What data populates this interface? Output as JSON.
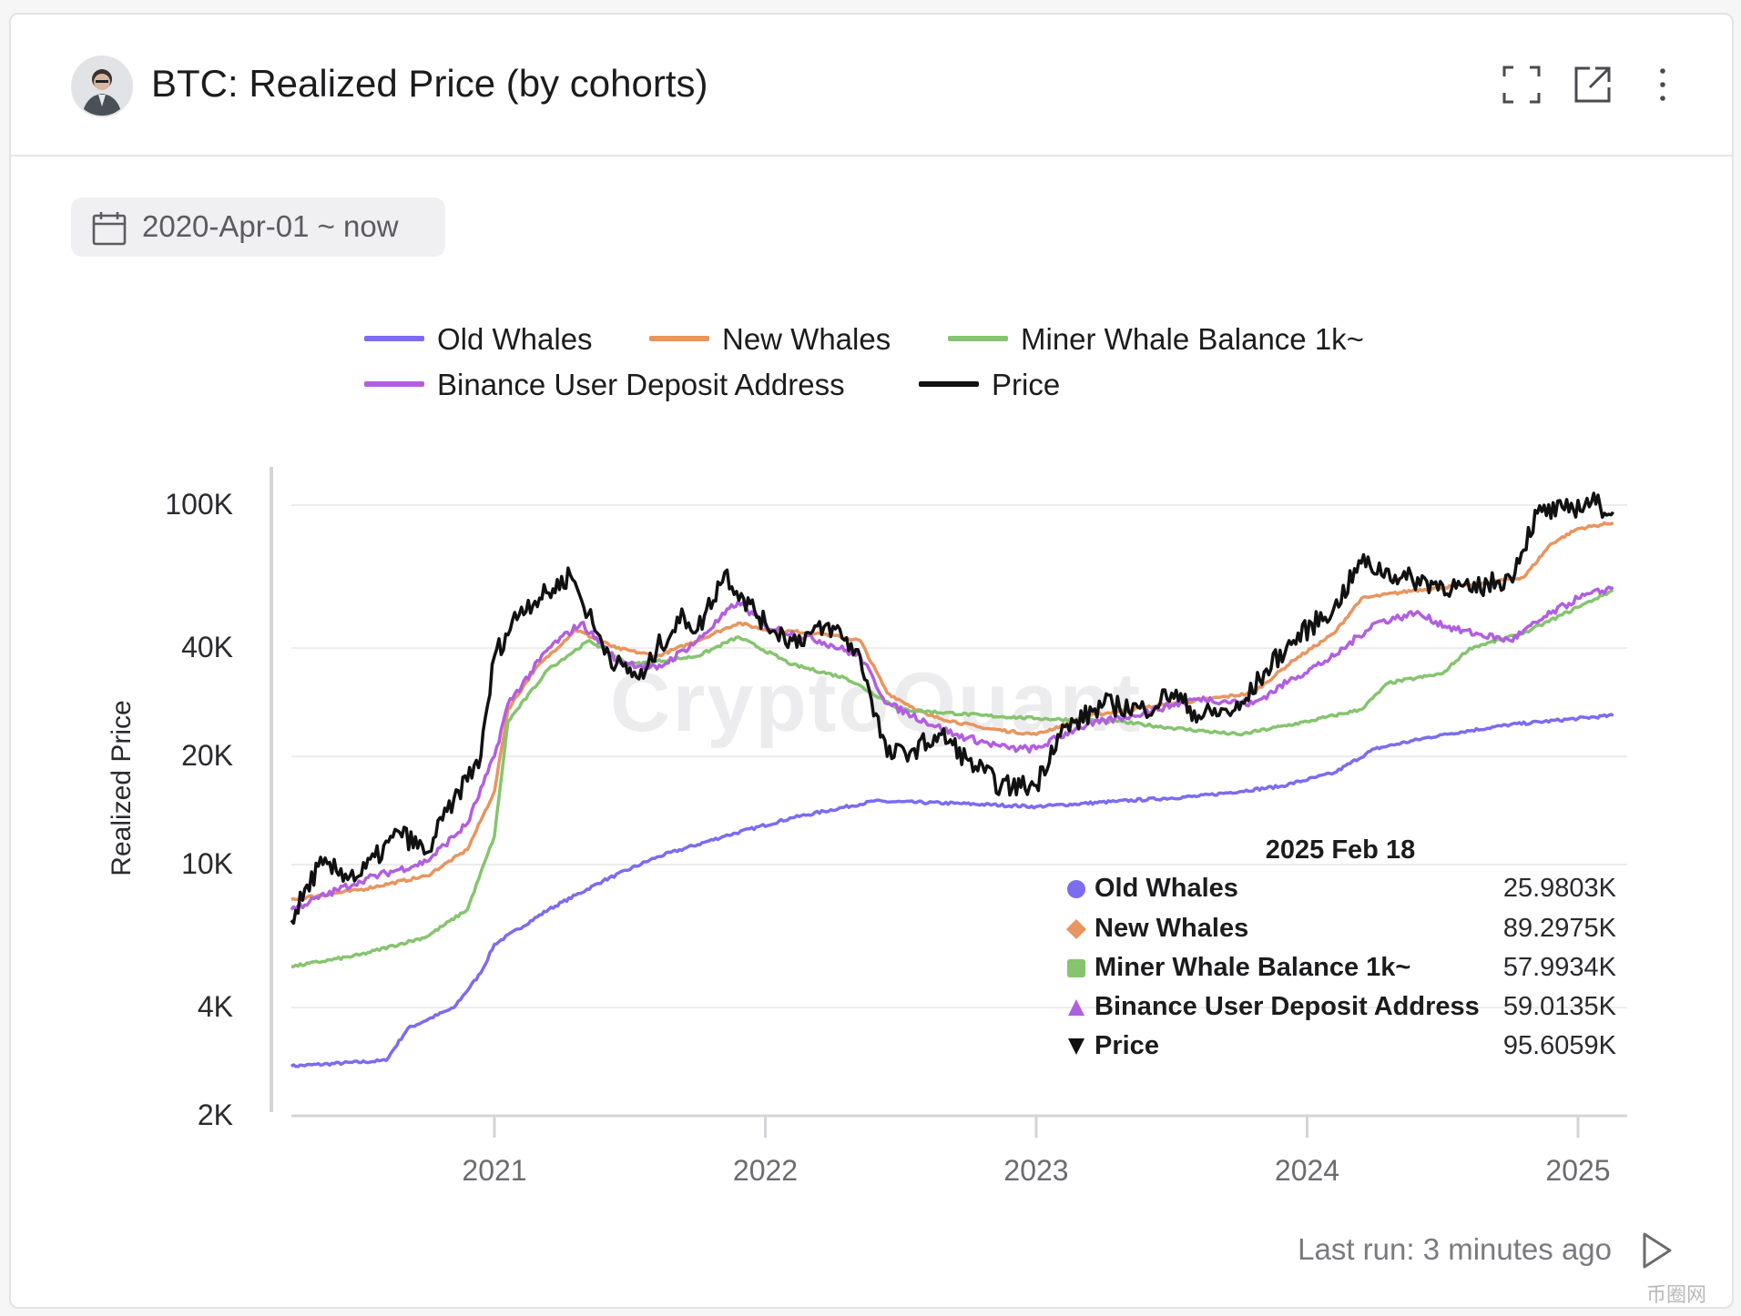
{
  "header": {
    "title": "BTC: Realized Price (by cohorts)"
  },
  "date_range": {
    "label": "2020-Apr-01 ~ now"
  },
  "footer": {
    "last_run": "Last run: 3 minutes ago"
  },
  "watermark": "CryptoQuant",
  "corner_logo": "币圈网",
  "colors": {
    "old_whales": "#7b6cf0",
    "new_whales": "#e8955f",
    "miner": "#86c46f",
    "binance": "#b25ee0",
    "price": "#111111"
  },
  "chart_data": {
    "type": "line",
    "title": "BTC: Realized Price (by cohorts)",
    "xlabel": "",
    "ylabel": "Realized Price",
    "yscale": "log",
    "ylim": [
      2000,
      100000
    ],
    "xlim": [
      2020.25,
      2025.13
    ],
    "yticks": [
      {
        "v": 100000,
        "label": "100K"
      },
      {
        "v": 40000,
        "label": "40K"
      },
      {
        "v": 20000,
        "label": "20K"
      },
      {
        "v": 10000,
        "label": "10K"
      },
      {
        "v": 4000,
        "label": "4K"
      },
      {
        "v": 2000,
        "label": "2K"
      }
    ],
    "xticks": [
      {
        "v": 2021,
        "label": "2021"
      },
      {
        "v": 2022,
        "label": "2022"
      },
      {
        "v": 2023,
        "label": "2023"
      },
      {
        "v": 2024,
        "label": "2024"
      },
      {
        "v": 2025,
        "label": "2025"
      }
    ],
    "legend_position": "top",
    "series": [
      {
        "key": "old_whales",
        "name": "Old Whales",
        "color": "#7b6cf0",
        "points": [
          [
            2020.25,
            2750
          ],
          [
            2020.6,
            2850
          ],
          [
            2020.68,
            3500
          ],
          [
            2020.85,
            4000
          ],
          [
            2020.95,
            5000
          ],
          [
            2021.0,
            6000
          ],
          [
            2021.2,
            7500
          ],
          [
            2021.4,
            9000
          ],
          [
            2021.6,
            10500
          ],
          [
            2021.85,
            12000
          ],
          [
            2022.1,
            13500
          ],
          [
            2022.4,
            15000
          ],
          [
            2022.7,
            14800
          ],
          [
            2023.0,
            14500
          ],
          [
            2023.3,
            15000
          ],
          [
            2023.6,
            15500
          ],
          [
            2023.9,
            16500
          ],
          [
            2024.1,
            18000
          ],
          [
            2024.25,
            21000
          ],
          [
            2024.5,
            23000
          ],
          [
            2024.75,
            24500
          ],
          [
            2025.0,
            25500
          ],
          [
            2025.13,
            25980
          ]
        ]
      },
      {
        "key": "new_whales",
        "name": "New Whales",
        "color": "#e8955f",
        "points": [
          [
            2020.25,
            8000
          ],
          [
            2020.5,
            8500
          ],
          [
            2020.75,
            9300
          ],
          [
            2020.9,
            11000
          ],
          [
            2021.0,
            16000
          ],
          [
            2021.05,
            27000
          ],
          [
            2021.15,
            35000
          ],
          [
            2021.3,
            45000
          ],
          [
            2021.45,
            40000
          ],
          [
            2021.6,
            38000
          ],
          [
            2021.75,
            42000
          ],
          [
            2021.9,
            47000
          ],
          [
            2022.0,
            45000
          ],
          [
            2022.2,
            44000
          ],
          [
            2022.35,
            42000
          ],
          [
            2022.45,
            30000
          ],
          [
            2022.6,
            26000
          ],
          [
            2022.8,
            24000
          ],
          [
            2023.0,
            23000
          ],
          [
            2023.2,
            26000
          ],
          [
            2023.5,
            28000
          ],
          [
            2023.8,
            30000
          ],
          [
            2023.95,
            37000
          ],
          [
            2024.1,
            44000
          ],
          [
            2024.2,
            55000
          ],
          [
            2024.4,
            58000
          ],
          [
            2024.6,
            60000
          ],
          [
            2024.8,
            63000
          ],
          [
            2024.9,
            78000
          ],
          [
            2025.0,
            86000
          ],
          [
            2025.13,
            89298
          ]
        ]
      },
      {
        "key": "miner",
        "name": "Miner Whale Balance 1k~",
        "color": "#86c46f",
        "points": [
          [
            2020.25,
            5200
          ],
          [
            2020.5,
            5600
          ],
          [
            2020.75,
            6300
          ],
          [
            2020.9,
            7500
          ],
          [
            2021.0,
            12000
          ],
          [
            2021.05,
            25000
          ],
          [
            2021.2,
            35000
          ],
          [
            2021.35,
            42000
          ],
          [
            2021.5,
            36000
          ],
          [
            2021.75,
            38000
          ],
          [
            2021.9,
            43000
          ],
          [
            2022.1,
            36000
          ],
          [
            2022.3,
            33000
          ],
          [
            2022.5,
            27000
          ],
          [
            2022.8,
            26000
          ],
          [
            2023.0,
            25500
          ],
          [
            2023.3,
            25000
          ],
          [
            2023.5,
            24000
          ],
          [
            2023.75,
            23000
          ],
          [
            2024.0,
            25000
          ],
          [
            2024.2,
            27000
          ],
          [
            2024.3,
            32000
          ],
          [
            2024.5,
            34000
          ],
          [
            2024.6,
            40000
          ],
          [
            2024.8,
            44000
          ],
          [
            2025.0,
            52000
          ],
          [
            2025.13,
            57993
          ]
        ]
      },
      {
        "key": "binance",
        "name": "Binance User Deposit Address",
        "color": "#b25ee0",
        "points": [
          [
            2020.25,
            7500
          ],
          [
            2020.5,
            9000
          ],
          [
            2020.75,
            10200
          ],
          [
            2020.9,
            13000
          ],
          [
            2021.0,
            20000
          ],
          [
            2021.05,
            28000
          ],
          [
            2021.2,
            40000
          ],
          [
            2021.32,
            47000
          ],
          [
            2021.45,
            37000
          ],
          [
            2021.6,
            35000
          ],
          [
            2021.75,
            42000
          ],
          [
            2021.9,
            54000
          ],
          [
            2022.0,
            46000
          ],
          [
            2022.2,
            42000
          ],
          [
            2022.35,
            38000
          ],
          [
            2022.45,
            28000
          ],
          [
            2022.7,
            23000
          ],
          [
            2022.9,
            21000
          ],
          [
            2023.0,
            21000
          ],
          [
            2023.15,
            24000
          ],
          [
            2023.35,
            26000
          ],
          [
            2023.6,
            29000
          ],
          [
            2023.8,
            28000
          ],
          [
            2023.95,
            33000
          ],
          [
            2024.1,
            38000
          ],
          [
            2024.25,
            47000
          ],
          [
            2024.4,
            50000
          ],
          [
            2024.55,
            45000
          ],
          [
            2024.75,
            42000
          ],
          [
            2024.9,
            50000
          ],
          [
            2025.0,
            55000
          ],
          [
            2025.13,
            59014
          ]
        ]
      },
      {
        "key": "price",
        "name": "Price",
        "color": "#111111",
        "points": [
          [
            2020.25,
            7000
          ],
          [
            2020.35,
            9900
          ],
          [
            2020.5,
            9300
          ],
          [
            2020.65,
            12300
          ],
          [
            2020.75,
            10800
          ],
          [
            2020.85,
            15200
          ],
          [
            2020.95,
            20000
          ],
          [
            2021.0,
            38000
          ],
          [
            2021.1,
            52000
          ],
          [
            2021.2,
            57000
          ],
          [
            2021.28,
            64000
          ],
          [
            2021.38,
            44000
          ],
          [
            2021.45,
            36000
          ],
          [
            2021.55,
            33000
          ],
          [
            2021.6,
            40000
          ],
          [
            2021.7,
            49000
          ],
          [
            2021.75,
            45000
          ],
          [
            2021.85,
            65000
          ],
          [
            2021.92,
            55000
          ],
          [
            2022.0,
            47000
          ],
          [
            2022.1,
            42000
          ],
          [
            2022.25,
            46000
          ],
          [
            2022.35,
            38000
          ],
          [
            2022.45,
            20000
          ],
          [
            2022.55,
            21000
          ],
          [
            2022.65,
            23000
          ],
          [
            2022.75,
            19500
          ],
          [
            2022.87,
            16500
          ],
          [
            2023.0,
            16600
          ],
          [
            2023.08,
            23000
          ],
          [
            2023.25,
            28000
          ],
          [
            2023.4,
            27000
          ],
          [
            2023.5,
            30000
          ],
          [
            2023.6,
            26000
          ],
          [
            2023.75,
            27000
          ],
          [
            2023.85,
            35000
          ],
          [
            2023.95,
            42000
          ],
          [
            2024.1,
            52000
          ],
          [
            2024.2,
            69000
          ],
          [
            2024.35,
            63000
          ],
          [
            2024.5,
            60000
          ],
          [
            2024.6,
            58000
          ],
          [
            2024.75,
            63000
          ],
          [
            2024.85,
            95000
          ],
          [
            2024.95,
            97000
          ],
          [
            2025.05,
            102000
          ],
          [
            2025.13,
            95606
          ]
        ]
      }
    ],
    "tooltip": {
      "date": "2025 Feb 18",
      "rows": [
        {
          "name": "Old Whales",
          "value": "25.9803K",
          "marker": "circle",
          "color": "#7b6cf0"
        },
        {
          "name": "New Whales",
          "value": "89.2975K",
          "marker": "diamond",
          "color": "#e8955f"
        },
        {
          "name": "Miner Whale Balance 1k~",
          "value": "57.9934K",
          "marker": "square",
          "color": "#86c46f"
        },
        {
          "name": "Binance User Deposit Address",
          "value": "59.0135K",
          "marker": "triangle-up",
          "color": "#b25ee0"
        },
        {
          "name": "Price",
          "value": "95.6059K",
          "marker": "triangle-down",
          "color": "#111111"
        }
      ]
    }
  }
}
